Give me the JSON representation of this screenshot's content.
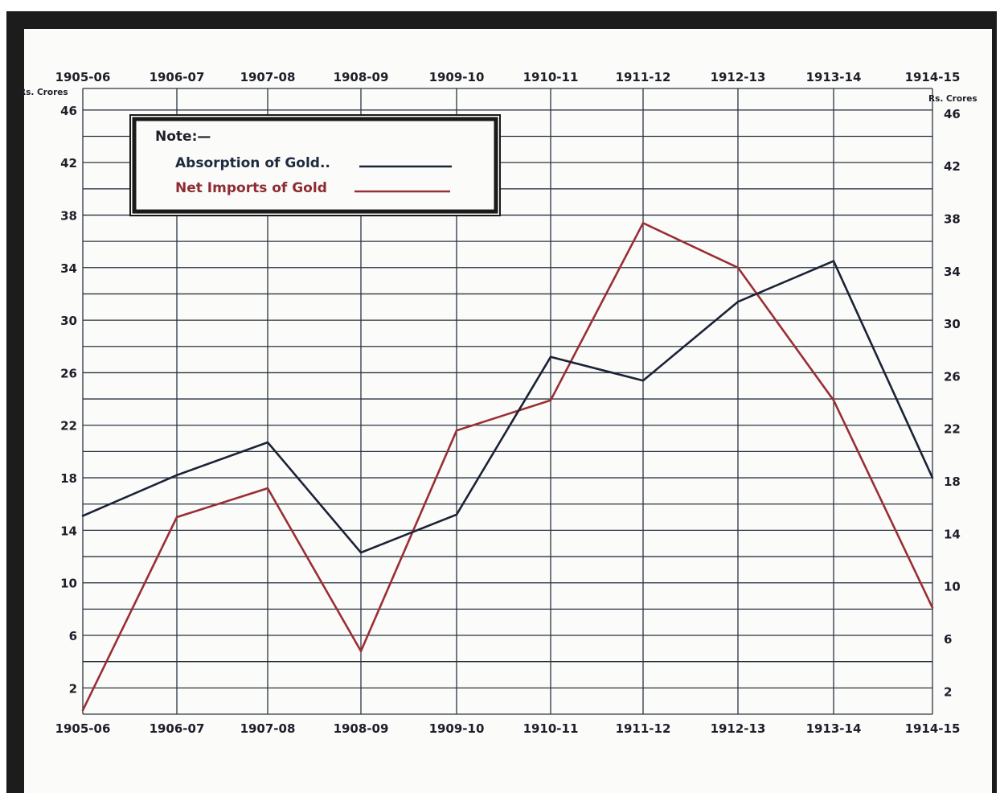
{
  "chart_data": {
    "type": "line",
    "categories": [
      "1905-06",
      "1906-07",
      "1907-08",
      "1908-09",
      "1909-10",
      "1910-11",
      "1911-12",
      "1912-13",
      "1913-14",
      "1914-15"
    ],
    "series": [
      {
        "name": "Absorption of Gold",
        "color": "#1a2336",
        "values": [
          15.1,
          18.2,
          20.7,
          12.3,
          15.2,
          27.2,
          25.4,
          31.4,
          34.5,
          18.0
        ]
      },
      {
        "name": "Net Imports of Gold",
        "color": "#9a2e35",
        "values": [
          0.3,
          15.0,
          17.2,
          4.8,
          21.6,
          23.9,
          37.4,
          34.0,
          23.9,
          8.1
        ]
      }
    ],
    "y_unit_left": "Rs. Crores",
    "y_unit_right": "Rs. Crores",
    "ylim": [
      0,
      48
    ],
    "y_labels": [
      "2",
      "6",
      "10",
      "14",
      "18",
      "22",
      "26",
      "30",
      "34",
      "38",
      "42",
      "46"
    ],
    "grid": true,
    "legend": {
      "placement": "top-left",
      "heading": "Note:—",
      "entries": [
        "Absorption of Gold..",
        "Net Imports of Gold"
      ]
    }
  }
}
